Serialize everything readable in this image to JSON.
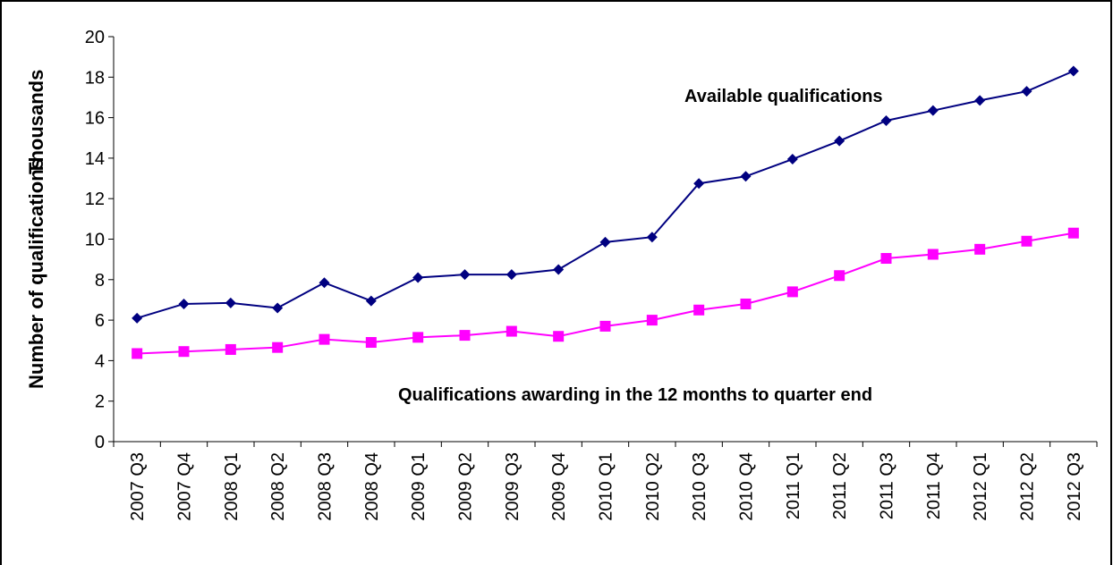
{
  "chart_data": {
    "type": "line",
    "y_label": "Number of qualifications",
    "y_unit": "Thousands",
    "categories": [
      "2007 Q3",
      "2007 Q4",
      "2008 Q1",
      "2008 Q2",
      "2008 Q3",
      "2008 Q4",
      "2009 Q1",
      "2009 Q2",
      "2009 Q3",
      "2009 Q4",
      "2010 Q1",
      "2010 Q2",
      "2010 Q3",
      "2010 Q4",
      "2011 Q1",
      "2011 Q2",
      "2011 Q3",
      "2011 Q4",
      "2012 Q1",
      "2012 Q2",
      "2012 Q3"
    ],
    "series": [
      {
        "name": "Available qualifications",
        "color": "#000080",
        "marker": "diamond",
        "values": [
          6.1,
          6.8,
          6.85,
          6.6,
          7.85,
          6.95,
          8.1,
          8.25,
          8.25,
          8.5,
          9.85,
          10.1,
          12.75,
          13.1,
          13.95,
          14.85,
          15.85,
          16.35,
          16.85,
          17.3,
          18.3
        ]
      },
      {
        "name": "Qualifications awarding in the 12 months to quarter end",
        "color": "#ff00ff",
        "marker": "square",
        "values": [
          4.35,
          4.45,
          4.55,
          4.65,
          5.05,
          4.9,
          5.15,
          5.25,
          5.45,
          5.2,
          5.7,
          6.0,
          6.5,
          6.8,
          7.4,
          8.2,
          9.05,
          9.25,
          9.5,
          9.9,
          10.3
        ]
      }
    ],
    "ylim": [
      0,
      20
    ],
    "yticks": [
      0,
      2,
      4,
      6,
      8,
      10,
      12,
      14,
      16,
      18,
      20
    ]
  }
}
